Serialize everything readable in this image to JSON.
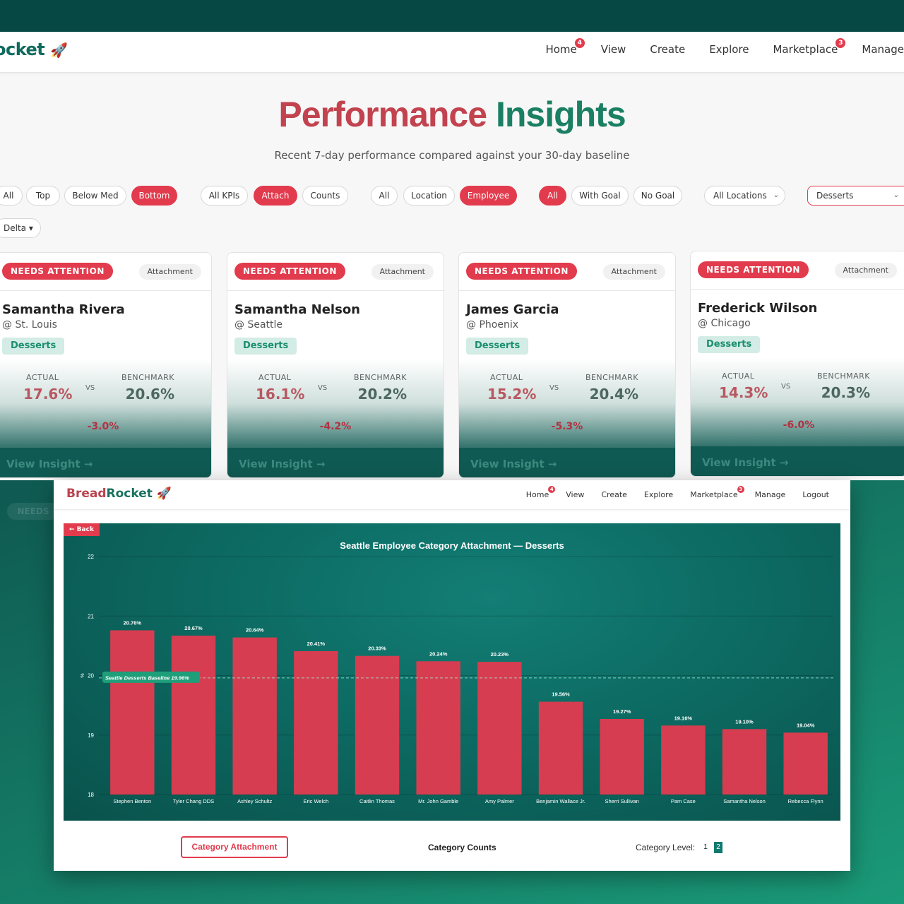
{
  "back": {
    "brand": "ocket",
    "nav": [
      {
        "label": "Home",
        "badge": "4"
      },
      {
        "label": "View",
        "badge": ""
      },
      {
        "label": "Create",
        "badge": ""
      },
      {
        "label": "Explore",
        "badge": ""
      },
      {
        "label": "Marketplace",
        "badge": "3"
      },
      {
        "label": "Manage",
        "badge": ""
      }
    ],
    "title_part1": "Performance",
    "title_part2": "Insights",
    "subtitle": "Recent 7-day performance compared against your 30-day baseline",
    "filters": {
      "rank": [
        "All",
        "Top",
        "Below Med",
        "Bottom"
      ],
      "rank_active": "Bottom",
      "kpi": [
        "All KPIs",
        "Attach",
        "Counts"
      ],
      "kpi_active": "Attach",
      "scope": [
        "All",
        "Location",
        "Employee"
      ],
      "scope_active": "Employee",
      "goal": [
        "All",
        "With Goal",
        "No Goal"
      ],
      "goal_active": "All",
      "location_select": "All Locations",
      "category_select": "Desserts",
      "sort_select": "Delta ▾"
    },
    "cards": [
      {
        "status": "NEEDS ATTENTION",
        "kpi": "Attachment",
        "name": "Samantha Rivera",
        "location": "@ St. Louis",
        "category": "Desserts",
        "actual_label": "ACTUAL",
        "actual": "17.6%",
        "vs": "VS",
        "bench_label": "BENCHMARK",
        "bench": "20.6%",
        "delta": "-3.0%",
        "link": "View Insight →"
      },
      {
        "status": "NEEDS ATTENTION",
        "kpi": "Attachment",
        "name": "Samantha Nelson",
        "location": "@ Seattle",
        "category": "Desserts",
        "actual_label": "ACTUAL",
        "actual": "16.1%",
        "vs": "VS",
        "bench_label": "BENCHMARK",
        "bench": "20.2%",
        "delta": "-4.2%",
        "link": "View Insight →"
      },
      {
        "status": "NEEDS ATTENTION",
        "kpi": "Attachment",
        "name": "James Garcia",
        "location": "@ Phoenix",
        "category": "Desserts",
        "actual_label": "ACTUAL",
        "actual": "15.2%",
        "vs": "VS",
        "bench_label": "BENCHMARK",
        "bench": "20.4%",
        "delta": "-5.3%",
        "link": "View Insight →"
      },
      {
        "status": "NEEDS ATTENTION",
        "kpi": "Attachment",
        "name": "Frederick Wilson",
        "location": "@ Chicago",
        "category": "Desserts",
        "actual_label": "ACTUAL",
        "actual": "14.3%",
        "vs": "VS",
        "bench_label": "BENCHMARK",
        "bench": "20.3%",
        "delta": "-6.0%",
        "link": "View Insight →"
      }
    ],
    "ghost_label": "NEEDS"
  },
  "front": {
    "brand_part1": "Bread",
    "brand_part2": "Rocket",
    "brand_icon": "🚀",
    "nav": [
      {
        "label": "Home",
        "badge": "4"
      },
      {
        "label": "View",
        "badge": ""
      },
      {
        "label": "Create",
        "badge": ""
      },
      {
        "label": "Explore",
        "badge": ""
      },
      {
        "label": "Marketplace",
        "badge": "3"
      },
      {
        "label": "Manage",
        "badge": ""
      },
      {
        "label": "Logout",
        "badge": ""
      }
    ],
    "back_button": "← Back",
    "tabs": {
      "attachment": "Category Attachment",
      "counts": "Category Counts"
    },
    "level_label": "Category Level:",
    "levels": [
      "1",
      "2"
    ],
    "level_active": "2"
  },
  "chart_data": {
    "type": "bar",
    "title": "Seattle Employee Category Attachment — Desserts",
    "ylabel": "%",
    "ylim": [
      18,
      22
    ],
    "yticks": [
      18,
      19,
      20,
      21,
      22
    ],
    "categories": [
      "Stephen Benton",
      "Tyler Chang DDS",
      "Ashley Schultz",
      "Eric Welch",
      "Caitlin Thomas",
      "Mr. John Gamble",
      "Amy Palmer",
      "Benjamin Wallace Jr.",
      "Sherri Sullivan",
      "Pam Case",
      "Samantha Nelson",
      "Rebecca Flynn"
    ],
    "values": [
      20.76,
      20.67,
      20.64,
      20.41,
      20.33,
      20.24,
      20.23,
      19.56,
      19.27,
      19.16,
      19.1,
      19.04
    ],
    "value_labels": [
      "20.76%",
      "20.67%",
      "20.64%",
      "20.41%",
      "20.33%",
      "20.24%",
      "20.23%",
      "19.56%",
      "19.27%",
      "19.16%",
      "19.10%",
      "19.04%"
    ],
    "baseline": {
      "value": 19.96,
      "label": "Seattle Desserts Baseline 19.96%"
    },
    "bar_color": "#d63d50",
    "grid": true
  }
}
